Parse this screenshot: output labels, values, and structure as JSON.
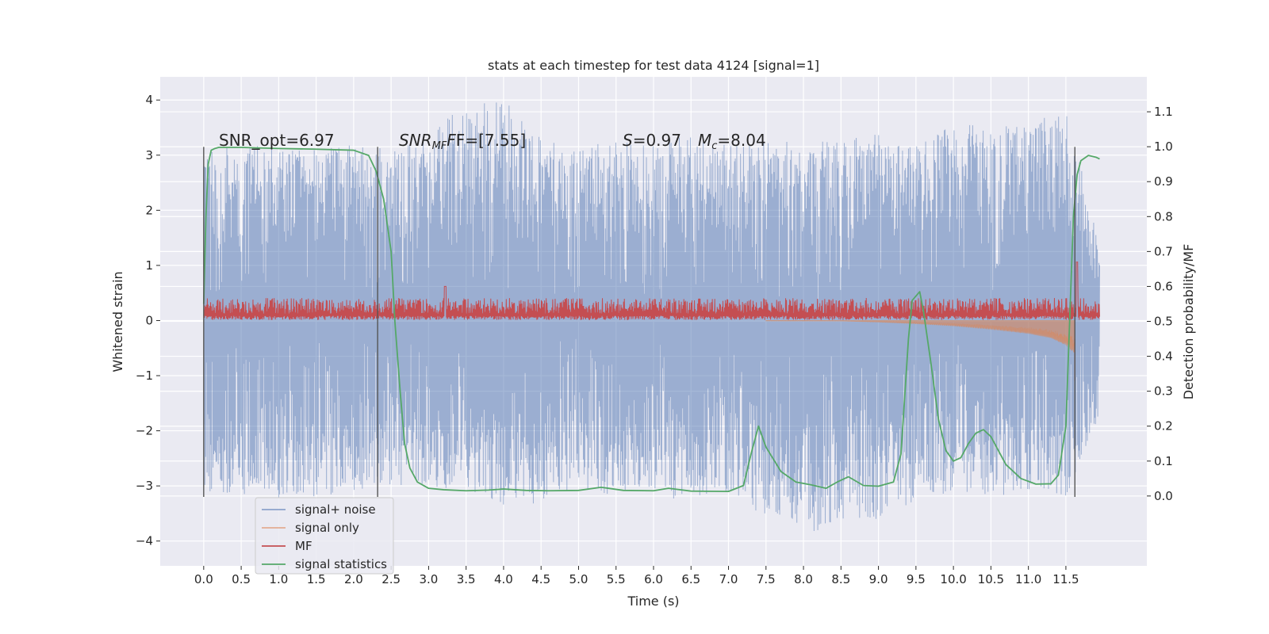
{
  "chart_data": {
    "type": "line",
    "title": "stats at each timestep for test data 4124 [signal=1]",
    "xlabel": "Time (s)",
    "ylabel": "Whitened strain",
    "ylabel_right": "Detection probability/MF",
    "xlim": [
      -0.58,
      12.58
    ],
    "ylim": [
      -4.45,
      4.42
    ],
    "ylim_right": [
      -0.2,
      1.2
    ],
    "x_ticks": [
      0.0,
      0.5,
      1.0,
      1.5,
      2.0,
      2.5,
      3.0,
      3.5,
      4.0,
      4.5,
      5.0,
      5.5,
      6.0,
      6.5,
      7.0,
      7.5,
      8.0,
      8.5,
      9.0,
      9.5,
      10.0,
      10.5,
      11.0,
      11.5
    ],
    "x_tick_labels": [
      "0.0",
      "0.5",
      "1.0",
      "1.5",
      "2.0",
      "2.5",
      "3.0",
      "3.5",
      "4.0",
      "4.5",
      "5.0",
      "5.5",
      "6.0",
      "6.5",
      "7.0",
      "7.5",
      "8.0",
      "8.5",
      "9.0",
      "9.5",
      "10.0",
      "10.5",
      "11.0",
      "11.5"
    ],
    "y_ticks": [
      4,
      3,
      2,
      1,
      0,
      -1,
      -2,
      -3,
      -4
    ],
    "y_tick_labels": [
      "4",
      "3",
      "2",
      "1",
      "0",
      "−1",
      "−2",
      "−3",
      "−4"
    ],
    "y_right_ticks": [
      1.1,
      1.0,
      0.9,
      0.8,
      0.7,
      0.6,
      0.5,
      0.4,
      0.3,
      0.2,
      0.1,
      0.0
    ],
    "y_right_tick_labels": [
      "1.1",
      "1.0",
      "0.9",
      "0.8",
      "0.7",
      "0.6",
      "0.5",
      "0.4",
      "0.3",
      "0.2",
      "0.1",
      "0.0"
    ],
    "grid": true,
    "legend_position": "lower-left",
    "annotations": {
      "snr_opt": "SNR_opt=6.97",
      "snr_mf_main": "SNR",
      "snr_mf_sub": "MF",
      "snr_mf_rest": "F=[7.55]",
      "s_symbol": "S",
      "s_value": "=0.97",
      "mc_symbol": "M",
      "mc_sub": "c",
      "mc_value": "=8.04"
    },
    "vertical_markers": [
      0.0,
      2.32,
      11.62
    ],
    "series": [
      {
        "name": "signal+ noise",
        "color": "#4c72b0",
        "style": "dense noise trace",
        "duration": 12.0,
        "envelope_x": [
          0.0,
          0.5,
          1.0,
          1.5,
          2.0,
          2.5,
          3.0,
          3.5,
          4.0,
          4.5,
          5.0,
          5.5,
          6.0,
          6.5,
          7.0,
          7.5,
          8.0,
          8.5,
          9.0,
          9.5,
          10.0,
          10.5,
          11.0,
          11.5,
          11.95
        ],
        "envelope_high": [
          3.1,
          3.2,
          3.15,
          3.1,
          3.2,
          3.1,
          3.3,
          4.05,
          4.05,
          3.3,
          3.2,
          3.3,
          3.2,
          3.45,
          3.2,
          3.3,
          3.2,
          3.3,
          3.4,
          3.2,
          3.6,
          3.5,
          3.6,
          3.8,
          1.5
        ],
        "envelope_low": [
          -3.1,
          -3.2,
          -3.3,
          -3.2,
          -3.1,
          -3.0,
          -3.0,
          -3.1,
          -3.4,
          -3.3,
          -3.1,
          -3.2,
          -3.1,
          -3.35,
          -3.1,
          -3.6,
          -3.9,
          -3.65,
          -3.6,
          -3.3,
          -3.1,
          -3.2,
          -3.1,
          -3.2,
          -1.7
        ]
      },
      {
        "name": "signal only",
        "color": "#dd8452",
        "style": "chirp growing toward merger",
        "x": [
          0.0,
          8.5,
          9.0,
          9.5,
          10.0,
          10.5,
          11.0,
          11.3,
          11.5,
          11.62
        ],
        "amplitude": [
          0.0,
          0.01,
          0.03,
          0.06,
          0.1,
          0.16,
          0.24,
          0.32,
          0.45,
          0.6
        ]
      },
      {
        "name": "MF",
        "color": "#c44e52",
        "style": "matched-filter output, noisy around 0.52 on right axis",
        "base": 0.522,
        "spread": 0.03,
        "peaks": [
          {
            "x": 3.22,
            "y": 0.6
          },
          {
            "x": 11.65,
            "y": 0.67
          }
        ]
      },
      {
        "name": "signal statistics",
        "color": "#55a868",
        "x": [
          0.0,
          0.03,
          0.06,
          0.1,
          0.15,
          0.2,
          0.5,
          1.0,
          1.5,
          2.0,
          2.2,
          2.3,
          2.4,
          2.5,
          2.55,
          2.62,
          2.68,
          2.75,
          2.85,
          3.0,
          3.2,
          3.5,
          3.8,
          4.0,
          4.3,
          4.6,
          5.0,
          5.3,
          5.6,
          6.0,
          6.2,
          6.5,
          7.0,
          7.2,
          7.3,
          7.4,
          7.5,
          7.7,
          7.9,
          8.1,
          8.3,
          8.45,
          8.6,
          8.8,
          9.0,
          9.2,
          9.3,
          9.4,
          9.45,
          9.55,
          9.6,
          9.7,
          9.8,
          9.9,
          10.0,
          10.1,
          10.2,
          10.3,
          10.4,
          10.5,
          10.7,
          10.9,
          11.1,
          11.3,
          11.4,
          11.5,
          11.55,
          11.6,
          11.65,
          11.7,
          11.8,
          11.9,
          11.95
        ],
        "y": [
          0.55,
          0.8,
          0.95,
          0.99,
          0.995,
          0.998,
          0.998,
          0.995,
          0.993,
          0.99,
          0.975,
          0.93,
          0.85,
          0.7,
          0.5,
          0.3,
          0.15,
          0.08,
          0.04,
          0.022,
          0.018,
          0.015,
          0.017,
          0.02,
          0.016,
          0.015,
          0.016,
          0.025,
          0.016,
          0.015,
          0.022,
          0.014,
          0.013,
          0.03,
          0.12,
          0.2,
          0.14,
          0.07,
          0.04,
          0.032,
          0.022,
          0.04,
          0.055,
          0.03,
          0.028,
          0.04,
          0.12,
          0.45,
          0.56,
          0.585,
          0.53,
          0.38,
          0.22,
          0.13,
          0.1,
          0.11,
          0.15,
          0.18,
          0.19,
          0.17,
          0.09,
          0.05,
          0.034,
          0.035,
          0.06,
          0.2,
          0.5,
          0.8,
          0.92,
          0.96,
          0.975,
          0.97,
          0.965
        ]
      }
    ]
  }
}
